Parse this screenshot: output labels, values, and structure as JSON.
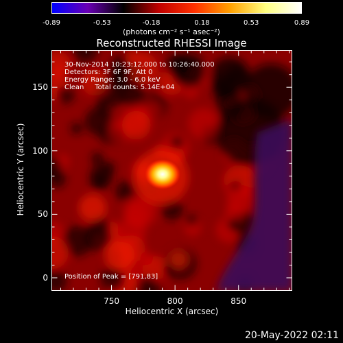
{
  "chart_data": {
    "type": "heatmap",
    "title": "Reconstructed RHESSI Image",
    "xlabel": "Heliocentric X (arcsec)",
    "ylabel": "Heliocentric Y (arcsec)",
    "xlim": [
      703,
      892
    ],
    "ylim": [
      -10,
      179
    ],
    "x_ticks": [
      "750",
      "800",
      "850"
    ],
    "y_ticks": [
      "0",
      "50",
      "100",
      "150"
    ],
    "peak": {
      "x": 791,
      "y": 83
    },
    "colorbar": {
      "min": -0.89,
      "max": 0.89,
      "tick_labels": [
        "-0.89",
        "-0.53",
        "-0.18",
        "0.18",
        "0.53",
        "0.89"
      ],
      "units": "(photons cm⁻² s⁻¹ asec⁻²)",
      "colors": [
        "#0000ff",
        "#6a00b4",
        "#000000",
        "#c00000",
        "#ff3000",
        "#ffa000",
        "#ffff80",
        "#ffffff"
      ]
    },
    "annotations": {
      "time_range": "30-Nov-2014 10:23:12.000 to 10:26:40.000",
      "detectors": "Detectors: 3F 6F 9F, Att 0",
      "energy": "Energy Range: 3.0 - 6.0 keV",
      "clean": "Clean     Total counts: 5.14E+04",
      "peak_position": "Position of Peak = [791,83]"
    }
  },
  "footer": {
    "date": "20-May-2022 02:11"
  }
}
